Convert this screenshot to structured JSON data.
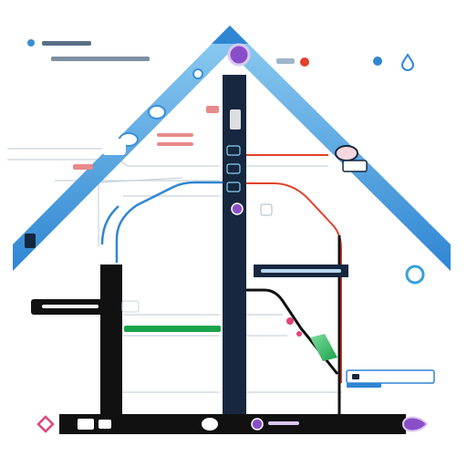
{
  "diagram": {
    "top_caption_1": "",
    "top_caption_2": "",
    "center_label": "",
    "left_label": "",
    "bottom_bar_label": ""
  },
  "colors": {
    "roof_blue": "#3b8fd6",
    "roof_light": "#8fcdf2",
    "dark_navy": "#16273f",
    "black_rail": "#111111",
    "red_line": "#e0422b",
    "green_line": "#1aa34a",
    "purple_node": "#8a4fc8",
    "pink_node": "#e0457b",
    "teal_ring": "#3aa0d8"
  },
  "icons": [
    "pin-icon",
    "dot-icon",
    "water-drop-icon",
    "ring-icon",
    "diamond-icon",
    "node-icon"
  ]
}
